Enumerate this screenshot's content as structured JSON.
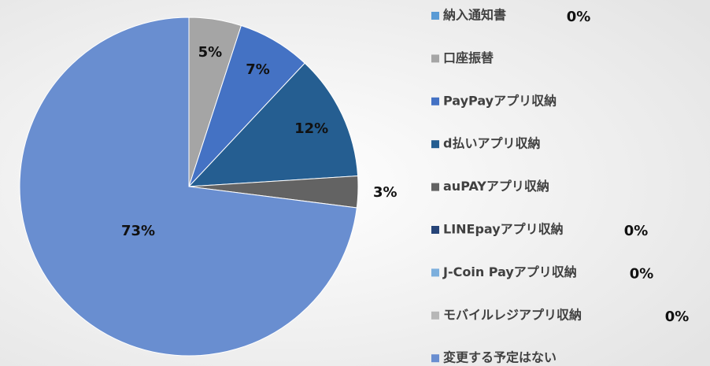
{
  "chart_data": {
    "type": "pie",
    "categories": [
      "納入通知書",
      "口座振替",
      "PayPayアプリ収納",
      "d払いアプリ収納",
      "auPAYアプリ収納",
      "LINEpayアプリ収納",
      "J-Coin Payアプリ収納",
      "モバイルレジアプリ収納",
      "変更する予定はない"
    ],
    "values": [
      0,
      5,
      7,
      12,
      3,
      0,
      0,
      0,
      73
    ],
    "value_labels": [
      "0%",
      "5%",
      "7%",
      "12%",
      "3%",
      "0%",
      "0%",
      "0%",
      "73%"
    ],
    "colors": [
      "#5b9bd5",
      "#a5a5a5",
      "#4472c4",
      "#255e91",
      "#636363",
      "#264478",
      "#7cafdd",
      "#b7b7b7",
      "#698ed0"
    ],
    "legend": "right"
  }
}
